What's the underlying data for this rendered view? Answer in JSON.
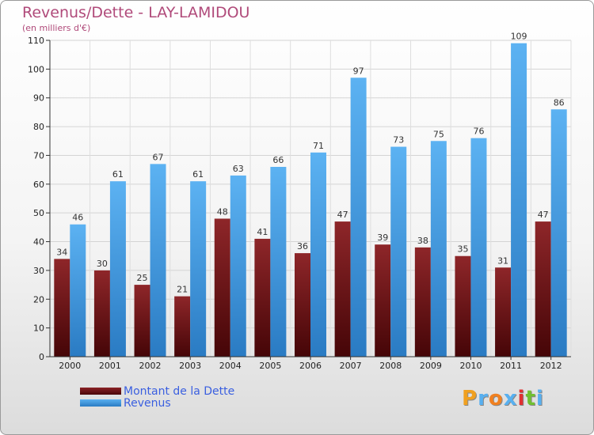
{
  "title": "Revenus/Dette - LAY-LAMIDOU",
  "subtitle": "(en milliers d'€)",
  "brand": {
    "letters": [
      "P",
      "r",
      "o",
      "x",
      "i",
      "t",
      "i"
    ],
    "colors": [
      "#f0a020",
      "#58b0f0",
      "#f08020",
      "#58b0f0",
      "#e03030",
      "#70c030",
      "#58b0f0"
    ]
  },
  "colors": {
    "dette": "#6e1518",
    "revenus": "#3d9ee6"
  },
  "chart_data": {
    "type": "bar",
    "categories": [
      "2000",
      "2001",
      "2002",
      "2003",
      "2004",
      "2005",
      "2006",
      "2007",
      "2008",
      "2009",
      "2010",
      "2011",
      "2012"
    ],
    "series": [
      {
        "name": "Montant de la Dette",
        "values": [
          34,
          30,
          25,
          21,
          48,
          41,
          36,
          47,
          39,
          38,
          35,
          31,
          47
        ]
      },
      {
        "name": "Revenus",
        "values": [
          46,
          61,
          67,
          61,
          63,
          66,
          71,
          97,
          73,
          75,
          76,
          109,
          86
        ]
      }
    ],
    "ylim": [
      0,
      110
    ],
    "yticks": [
      0,
      10,
      20,
      30,
      40,
      50,
      60,
      70,
      80,
      90,
      100,
      110
    ],
    "grid": true,
    "legend_position": "bottom-left"
  }
}
